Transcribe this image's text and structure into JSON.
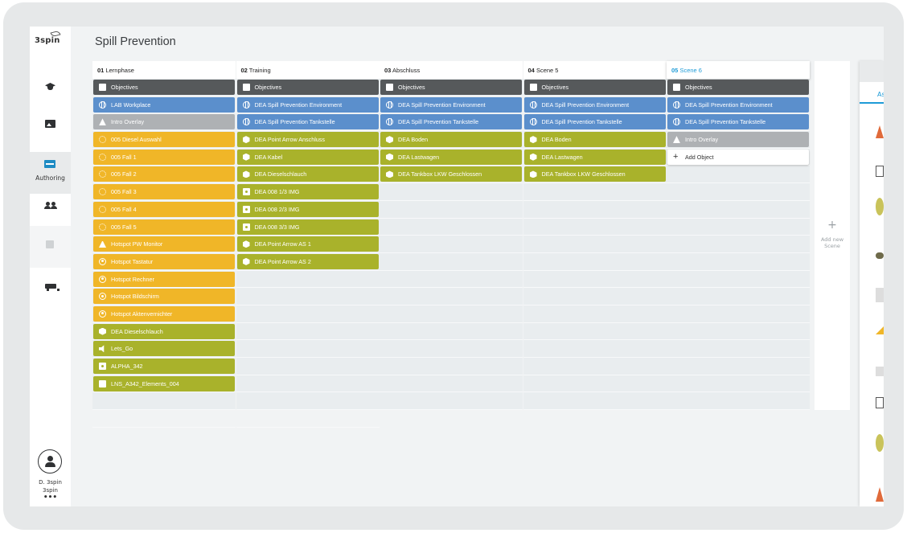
{
  "app": {
    "logo": "3spin",
    "page_title": "Spill Prevention"
  },
  "sidebar": {
    "authoring_label": "Authoring",
    "user_name": "D. 3spin",
    "user_org": "3spin",
    "more": "•••"
  },
  "scenes": [
    {
      "num": "01",
      "name": "Lernphase",
      "active": false,
      "items": [
        {
          "label": "Objectives",
          "type": "obj",
          "icon": "doc"
        },
        {
          "label": "LAB Workplace",
          "type": "env",
          "icon": "globe"
        },
        {
          "label": "Intro Overlay",
          "type": "over",
          "icon": "shapes"
        },
        {
          "label": "005 Diesel Auswahl",
          "type": "yel",
          "icon": "spin"
        },
        {
          "label": "005 Fall 1",
          "type": "yel",
          "icon": "spin"
        },
        {
          "label": "005 Fall 2",
          "type": "yel",
          "icon": "spin"
        },
        {
          "label": "005 Fall 3",
          "type": "yel",
          "icon": "spin"
        },
        {
          "label": "005 Fall 4",
          "type": "yel",
          "icon": "spin"
        },
        {
          "label": "005 Fall 5",
          "type": "yel",
          "icon": "spin"
        },
        {
          "label": "Hotspot PW Monitor",
          "type": "yel",
          "icon": "warn"
        },
        {
          "label": "Hotspot Tastatur",
          "type": "yel",
          "icon": "target"
        },
        {
          "label": "Hotspot Rechner",
          "type": "yel",
          "icon": "target"
        },
        {
          "label": "Hotspot Bildschirm",
          "type": "yel",
          "icon": "target"
        },
        {
          "label": "Hotspot Aktenvernichter",
          "type": "yel",
          "icon": "target"
        },
        {
          "label": "DEA Dieselschlauch",
          "type": "grn",
          "icon": "cube"
        },
        {
          "label": "Lets_Go",
          "type": "grn",
          "icon": "sound"
        },
        {
          "label": "ALPHA_342",
          "type": "grn",
          "icon": "cam"
        },
        {
          "label": "LNS_A342_Elements_004",
          "type": "grn",
          "icon": "film"
        }
      ]
    },
    {
      "num": "02",
      "name": "Training",
      "active": false,
      "items": [
        {
          "label": "Objectives",
          "type": "obj",
          "icon": "doc"
        },
        {
          "label": "DEA Spill Prevention Environment",
          "type": "env",
          "icon": "globe"
        },
        {
          "label": "DEA Spill Prevention Tankstelle",
          "type": "env",
          "icon": "globe"
        },
        {
          "label": "DEA Point Arrow Anschluss",
          "type": "grn",
          "icon": "cube"
        },
        {
          "label": "DEA Kabel",
          "type": "grn",
          "icon": "cube"
        },
        {
          "label": "DEA Dieselschlauch",
          "type": "grn",
          "icon": "cube"
        },
        {
          "label": "DEA 008 1/3 IMG",
          "type": "grn",
          "icon": "cam"
        },
        {
          "label": "DEA 008 2/3 IMG",
          "type": "grn",
          "icon": "cam"
        },
        {
          "label": "DEA 008 3/3 IMG",
          "type": "grn",
          "icon": "cam"
        },
        {
          "label": "DEA Point Arrow AS 1",
          "type": "grn",
          "icon": "cube"
        },
        {
          "label": "DEA Point Arrow AS 2",
          "type": "grn",
          "icon": "cube"
        }
      ]
    },
    {
      "num": "03",
      "name": "Abschluss",
      "active": false,
      "items": [
        {
          "label": "Objectives",
          "type": "obj",
          "icon": "doc"
        },
        {
          "label": "DEA Spill Prevention Environment",
          "type": "env",
          "icon": "globe"
        },
        {
          "label": "DEA Spill Prevention Tankstelle",
          "type": "env",
          "icon": "globe"
        },
        {
          "label": "DEA Boden",
          "type": "grn",
          "icon": "cube"
        },
        {
          "label": "DEA Lastwagen",
          "type": "grn",
          "icon": "cube"
        },
        {
          "label": "DEA Tankbox LKW Geschlossen",
          "type": "grn",
          "icon": "cube"
        }
      ]
    },
    {
      "num": "04",
      "name": "Scene 5",
      "active": false,
      "items": [
        {
          "label": "Objectives",
          "type": "obj",
          "icon": "doc"
        },
        {
          "label": "DEA Spill Prevention Environment",
          "type": "env",
          "icon": "globe"
        },
        {
          "label": "DEA Spill Prevention Tankstelle",
          "type": "env",
          "icon": "globe"
        },
        {
          "label": "DEA Boden",
          "type": "grn",
          "icon": "cube"
        },
        {
          "label": "DEA Lastwagen",
          "type": "grn",
          "icon": "cube"
        },
        {
          "label": "DEA Tankbox LKW Geschlossen",
          "type": "grn",
          "icon": "cube"
        }
      ]
    },
    {
      "num": "05",
      "name": "Scene 6",
      "active": true,
      "items": [
        {
          "label": "Objectives",
          "type": "obj",
          "icon": "doc"
        },
        {
          "label": "DEA Spill Prevention Environment",
          "type": "env",
          "icon": "globe"
        },
        {
          "label": "DEA Spill Prevention Tankstelle",
          "type": "env",
          "icon": "globe"
        },
        {
          "label": "Intro Overlay",
          "type": "over",
          "icon": "shapes"
        },
        {
          "label": "Add Object",
          "type": "add",
          "icon": "plus"
        }
      ]
    }
  ],
  "add_scene": {
    "plus": "+",
    "label": "Add new Scene"
  },
  "right_panel": {
    "tab": "As"
  },
  "colors": {
    "objectives": "#56595b",
    "environment": "#5b8fcc",
    "overlay": "#aeb1b4",
    "hotspot": "#f0b628",
    "asset": "#a9b22b",
    "accent": "#1e9bd7"
  }
}
